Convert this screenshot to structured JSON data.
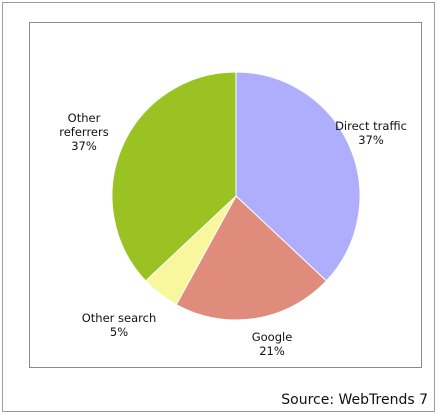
{
  "chart_data": {
    "type": "pie",
    "slices": [
      {
        "label_lines": [
          "Direct traffic"
        ],
        "value": 37,
        "value_text": "37%",
        "color": "#aeaefd"
      },
      {
        "label_lines": [
          "Google"
        ],
        "value": 21,
        "value_text": "21%",
        "color": "#e08c7c"
      },
      {
        "label_lines": [
          "Other search"
        ],
        "value": 5,
        "value_text": "5%",
        "color": "#f8f79e"
      },
      {
        "label_lines": [
          "Other",
          "referrers"
        ],
        "value": 37,
        "value_text": "37%",
        "color": "#99c222"
      }
    ],
    "start": "12 o'clock",
    "direction": "clockwise"
  },
  "source": "Source: WebTrends 7"
}
